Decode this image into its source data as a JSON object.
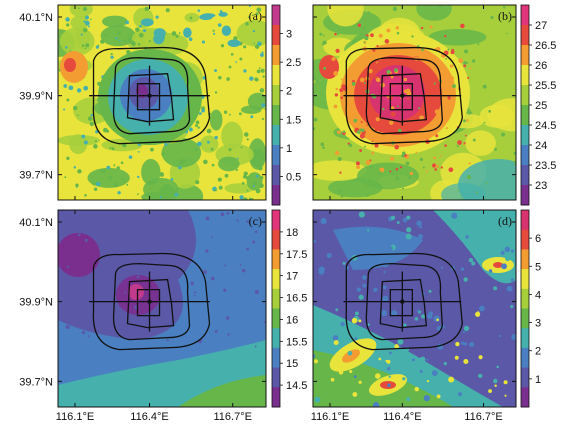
{
  "colors": {
    "c_purple": "#7a2f8f",
    "c_indigo": "#5b58a8",
    "c_blue": "#4a7fc1",
    "c_teal": "#46b0ad",
    "c_green": "#66b64a",
    "c_lime": "#a7cf3c",
    "c_yellow": "#e8e43c",
    "c_orange": "#f39c32",
    "c_red": "#e64a3c",
    "c_pink": "#d6336f",
    "c_magenta": "#c23a8c"
  },
  "lat_labels": [
    "40.1°N",
    "39.9°N",
    "39.7°N"
  ],
  "lon_labels": [
    "116.1°E",
    "116.4°E",
    "116.7°E"
  ],
  "panels": [
    {
      "id": "a",
      "label": "(a)",
      "colorbar": {
        "ticks": [
          "3",
          "2.5",
          "2",
          "1.5",
          "1",
          "0.5"
        ],
        "colors": [
          "#c23a8c",
          "#e64a3c",
          "#f39c32",
          "#e8e43c",
          "#a7cf3c",
          "#66b64a",
          "#46b0ad",
          "#4a7fc1",
          "#5b58a8",
          "#7a2f8f"
        ]
      }
    },
    {
      "id": "b",
      "label": "(b)",
      "colorbar": {
        "ticks": [
          "27",
          "26.5",
          "26",
          "25.5",
          "25",
          "24.5",
          "24",
          "23.5",
          "23"
        ],
        "colors": [
          "#e0357a",
          "#e64a3c",
          "#f39c32",
          "#e8e43c",
          "#a7cf3c",
          "#66b64a",
          "#46b0ad",
          "#4a7fc1",
          "#5b58a8",
          "#7a2f8f"
        ]
      }
    },
    {
      "id": "c",
      "label": "(c)",
      "colorbar": {
        "ticks": [
          "18",
          "17.5",
          "17",
          "16.5",
          "16",
          "15.5",
          "15",
          "14.5"
        ],
        "colors": [
          "#e0357a",
          "#e64a3c",
          "#f39c32",
          "#e8e43c",
          "#a7cf3c",
          "#66b64a",
          "#46b0ad",
          "#4a7fc1",
          "#5b58a8",
          "#7a2f8f"
        ]
      }
    },
    {
      "id": "d",
      "label": "(d)",
      "colorbar": {
        "ticks": [
          "6",
          "5",
          "4",
          "3",
          "2",
          "1"
        ],
        "colors": [
          "#d6336f",
          "#e64a3c",
          "#f39c32",
          "#e8e43c",
          "#a7cf3c",
          "#66b64a",
          "#46b0ad",
          "#4a7fc1",
          "#5b58a8",
          "#7a2f8f"
        ]
      }
    }
  ]
}
